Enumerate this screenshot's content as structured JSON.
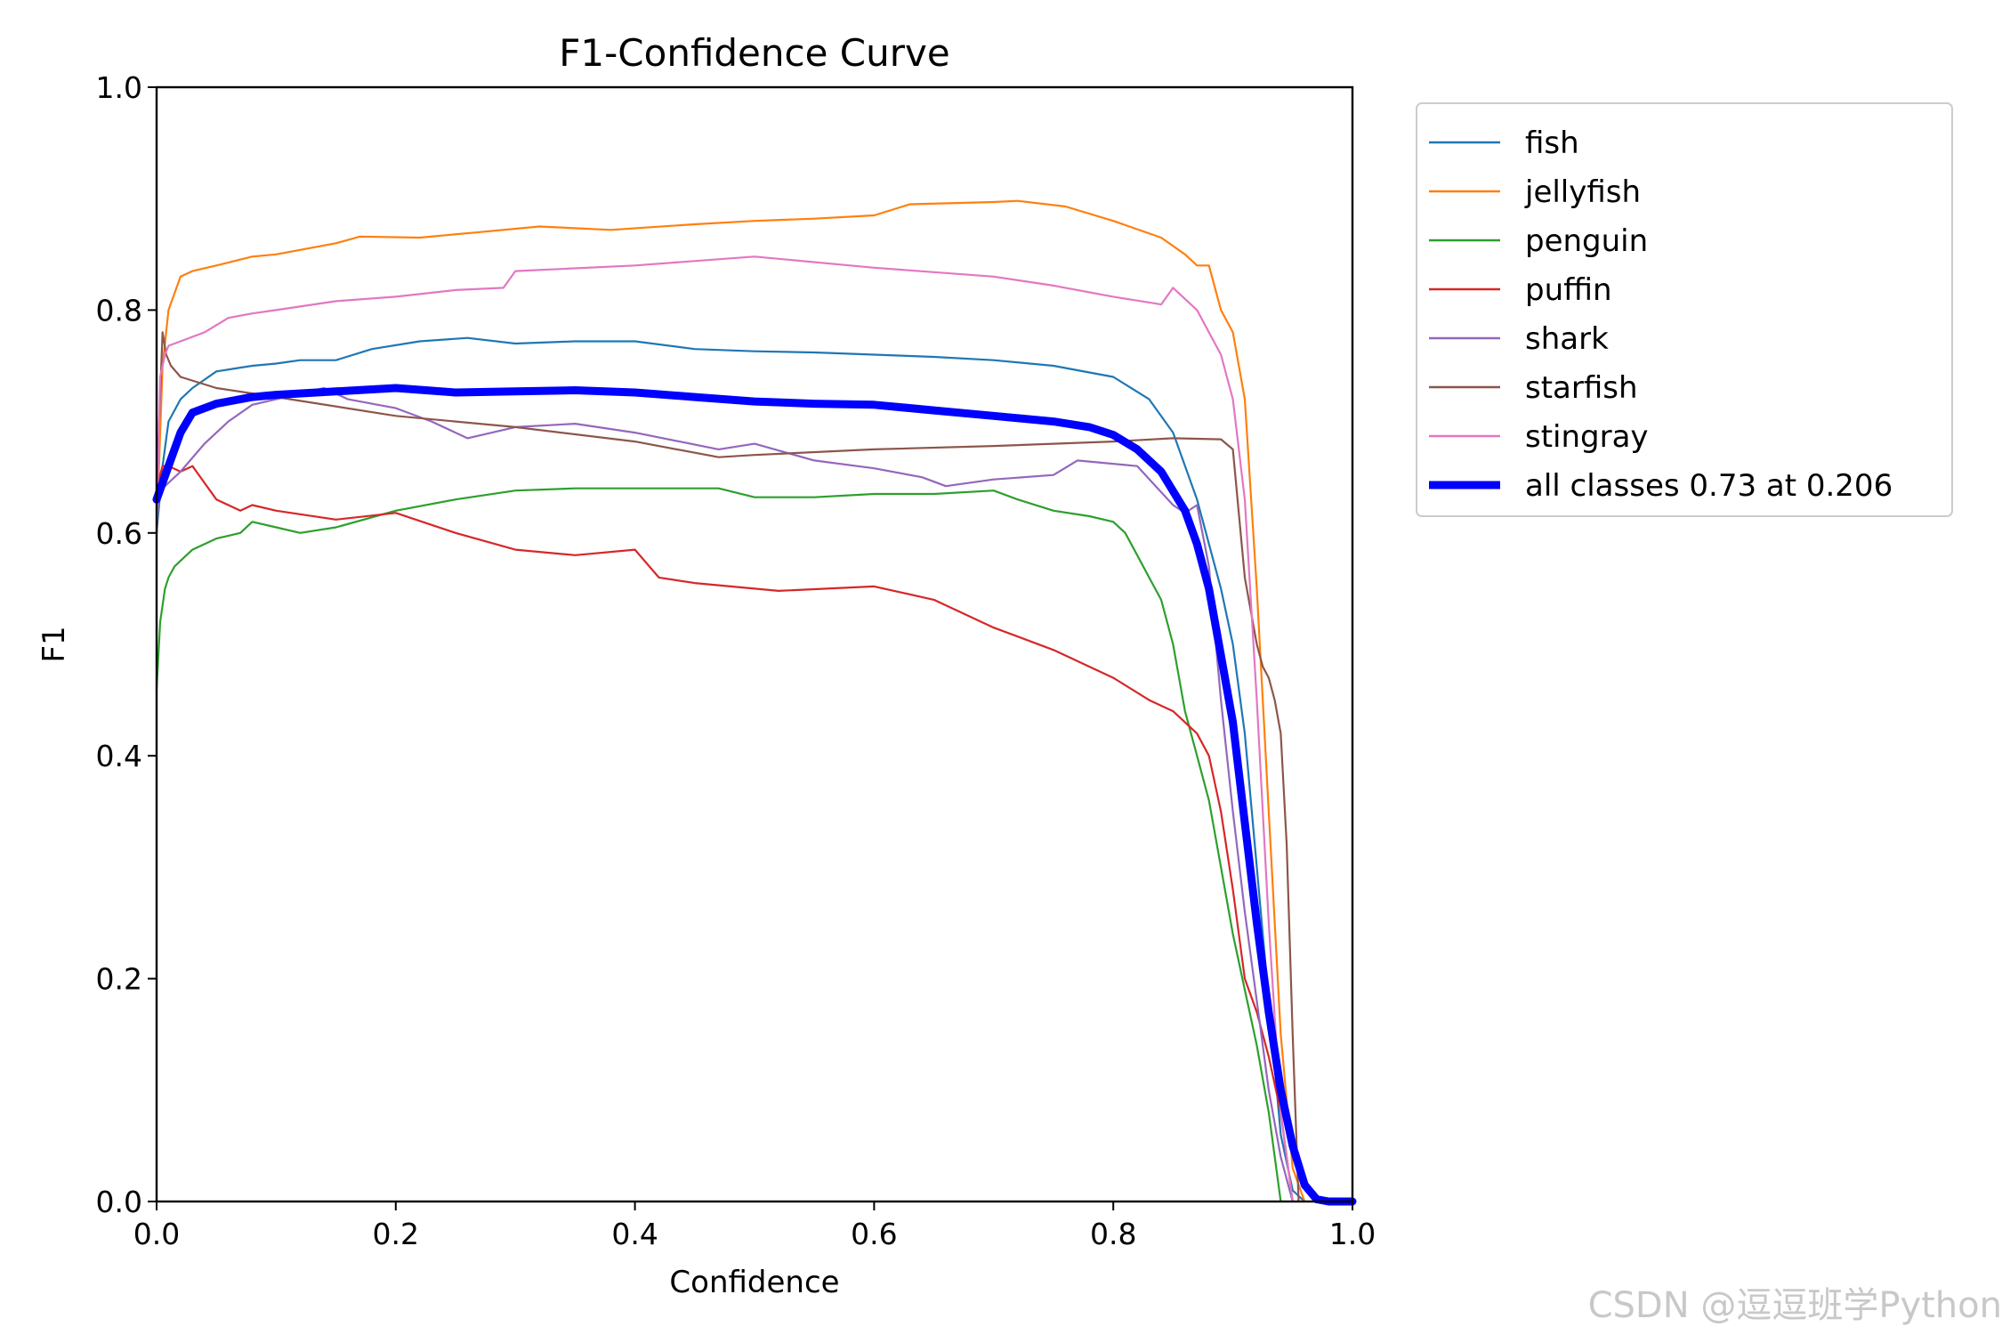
{
  "chart_data": {
    "type": "line",
    "title": "F1-Confidence Curve",
    "xlabel": "Confidence",
    "ylabel": "F1",
    "xlim": [
      0.0,
      1.0
    ],
    "ylim": [
      0.0,
      1.0
    ],
    "xticks": [
      "0.0",
      "0.2",
      "0.4",
      "0.6",
      "0.8",
      "1.0"
    ],
    "yticks": [
      "0.0",
      "0.2",
      "0.4",
      "0.6",
      "0.8",
      "1.0"
    ],
    "grid": false,
    "legend_position": "outside-right-top",
    "series": [
      {
        "name": "fish",
        "color": "#1f77b4",
        "x": [
          0.0,
          0.005,
          0.01,
          0.02,
          0.03,
          0.05,
          0.08,
          0.1,
          0.12,
          0.15,
          0.18,
          0.22,
          0.26,
          0.3,
          0.35,
          0.4,
          0.45,
          0.5,
          0.55,
          0.6,
          0.65,
          0.7,
          0.75,
          0.8,
          0.83,
          0.85,
          0.87,
          0.89,
          0.9,
          0.91,
          0.92,
          0.93,
          0.94,
          0.95,
          0.96
        ],
        "y": [
          0.6,
          0.66,
          0.7,
          0.72,
          0.73,
          0.745,
          0.75,
          0.752,
          0.755,
          0.755,
          0.765,
          0.772,
          0.775,
          0.77,
          0.772,
          0.772,
          0.765,
          0.763,
          0.762,
          0.76,
          0.758,
          0.755,
          0.75,
          0.74,
          0.72,
          0.69,
          0.63,
          0.55,
          0.5,
          0.42,
          0.3,
          0.18,
          0.06,
          0.01,
          0.0
        ]
      },
      {
        "name": "jellyfish",
        "color": "#ff7f0e",
        "x": [
          0.0,
          0.005,
          0.01,
          0.02,
          0.03,
          0.05,
          0.08,
          0.1,
          0.15,
          0.17,
          0.22,
          0.27,
          0.32,
          0.38,
          0.45,
          0.5,
          0.55,
          0.6,
          0.63,
          0.7,
          0.72,
          0.76,
          0.8,
          0.84,
          0.86,
          0.87,
          0.88,
          0.89,
          0.9,
          0.91,
          0.92,
          0.93,
          0.94,
          0.95,
          0.96
        ],
        "y": [
          0.6,
          0.75,
          0.8,
          0.83,
          0.835,
          0.84,
          0.848,
          0.85,
          0.86,
          0.866,
          0.865,
          0.87,
          0.875,
          0.872,
          0.877,
          0.88,
          0.882,
          0.885,
          0.895,
          0.897,
          0.898,
          0.893,
          0.88,
          0.865,
          0.85,
          0.84,
          0.84,
          0.8,
          0.78,
          0.72,
          0.55,
          0.35,
          0.15,
          0.03,
          0.0
        ]
      },
      {
        "name": "penguin",
        "color": "#2ca02c",
        "x": [
          0.0,
          0.003,
          0.007,
          0.01,
          0.015,
          0.02,
          0.03,
          0.05,
          0.07,
          0.08,
          0.1,
          0.12,
          0.15,
          0.2,
          0.25,
          0.3,
          0.35,
          0.4,
          0.45,
          0.47,
          0.5,
          0.55,
          0.6,
          0.65,
          0.7,
          0.72,
          0.75,
          0.78,
          0.8,
          0.81,
          0.82,
          0.83,
          0.84,
          0.85,
          0.86,
          0.87,
          0.88,
          0.89,
          0.9,
          0.91,
          0.92,
          0.93,
          0.94
        ],
        "y": [
          0.46,
          0.52,
          0.55,
          0.56,
          0.57,
          0.575,
          0.585,
          0.595,
          0.6,
          0.61,
          0.605,
          0.6,
          0.605,
          0.62,
          0.63,
          0.638,
          0.64,
          0.64,
          0.64,
          0.64,
          0.632,
          0.632,
          0.635,
          0.635,
          0.638,
          0.63,
          0.62,
          0.615,
          0.61,
          0.6,
          0.58,
          0.56,
          0.54,
          0.5,
          0.44,
          0.4,
          0.36,
          0.3,
          0.24,
          0.19,
          0.14,
          0.08,
          0.0
        ]
      },
      {
        "name": "puffin",
        "color": "#d62728",
        "x": [
          0.0,
          0.005,
          0.01,
          0.02,
          0.03,
          0.04,
          0.05,
          0.07,
          0.08,
          0.1,
          0.15,
          0.2,
          0.25,
          0.3,
          0.35,
          0.4,
          0.42,
          0.45,
          0.52,
          0.6,
          0.65,
          0.7,
          0.75,
          0.8,
          0.83,
          0.85,
          0.86,
          0.87,
          0.88,
          0.89,
          0.9,
          0.91,
          0.92,
          0.93,
          0.94,
          0.95
        ],
        "y": [
          0.64,
          0.66,
          0.66,
          0.655,
          0.66,
          0.645,
          0.63,
          0.62,
          0.625,
          0.62,
          0.612,
          0.618,
          0.6,
          0.585,
          0.58,
          0.585,
          0.56,
          0.555,
          0.548,
          0.552,
          0.54,
          0.515,
          0.495,
          0.47,
          0.45,
          0.44,
          0.43,
          0.42,
          0.4,
          0.35,
          0.28,
          0.2,
          0.17,
          0.13,
          0.08,
          0.0
        ]
      },
      {
        "name": "shark",
        "color": "#9467bd",
        "x": [
          0.0,
          0.005,
          0.01,
          0.02,
          0.04,
          0.06,
          0.08,
          0.1,
          0.14,
          0.16,
          0.2,
          0.23,
          0.26,
          0.3,
          0.35,
          0.4,
          0.47,
          0.5,
          0.55,
          0.6,
          0.64,
          0.66,
          0.7,
          0.75,
          0.77,
          0.82,
          0.85,
          0.86,
          0.87,
          0.88,
          0.89,
          0.9,
          0.91,
          0.92,
          0.93,
          0.94,
          0.95
        ],
        "y": [
          0.62,
          0.64,
          0.645,
          0.655,
          0.68,
          0.7,
          0.715,
          0.72,
          0.73,
          0.72,
          0.712,
          0.7,
          0.685,
          0.695,
          0.698,
          0.69,
          0.675,
          0.68,
          0.665,
          0.658,
          0.65,
          0.642,
          0.648,
          0.652,
          0.665,
          0.66,
          0.625,
          0.618,
          0.625,
          0.57,
          0.45,
          0.35,
          0.26,
          0.18,
          0.1,
          0.04,
          0.0
        ]
      },
      {
        "name": "starfish",
        "color": "#8c564b",
        "x": [
          0.0,
          0.005,
          0.008,
          0.012,
          0.02,
          0.05,
          0.1,
          0.2,
          0.3,
          0.4,
          0.47,
          0.5,
          0.6,
          0.7,
          0.8,
          0.85,
          0.89,
          0.9,
          0.91,
          0.92,
          0.925,
          0.93,
          0.935,
          0.94,
          0.945,
          0.95,
          0.955
        ],
        "y": [
          0.64,
          0.78,
          0.76,
          0.75,
          0.74,
          0.73,
          0.722,
          0.705,
          0.695,
          0.682,
          0.668,
          0.67,
          0.675,
          0.678,
          0.682,
          0.685,
          0.684,
          0.675,
          0.56,
          0.5,
          0.48,
          0.47,
          0.45,
          0.42,
          0.32,
          0.15,
          0.0
        ]
      },
      {
        "name": "stingray",
        "color": "#e377c2",
        "x": [
          0.0,
          0.003,
          0.007,
          0.01,
          0.02,
          0.04,
          0.06,
          0.08,
          0.1,
          0.15,
          0.2,
          0.25,
          0.29,
          0.3,
          0.4,
          0.5,
          0.6,
          0.7,
          0.75,
          0.8,
          0.84,
          0.85,
          0.87,
          0.88,
          0.89,
          0.9,
          0.91,
          0.92,
          0.93,
          0.94,
          0.95
        ],
        "y": [
          0.6,
          0.74,
          0.76,
          0.768,
          0.772,
          0.78,
          0.793,
          0.797,
          0.8,
          0.808,
          0.812,
          0.818,
          0.82,
          0.835,
          0.84,
          0.848,
          0.838,
          0.83,
          0.822,
          0.812,
          0.805,
          0.82,
          0.8,
          0.78,
          0.76,
          0.72,
          0.63,
          0.45,
          0.25,
          0.08,
          0.0
        ]
      },
      {
        "name": "all classes 0.73 at 0.206",
        "color": "#0000ff",
        "width": "bold",
        "x": [
          0.0,
          0.01,
          0.02,
          0.03,
          0.05,
          0.08,
          0.1,
          0.15,
          0.2,
          0.25,
          0.3,
          0.35,
          0.4,
          0.45,
          0.5,
          0.55,
          0.6,
          0.65,
          0.7,
          0.75,
          0.78,
          0.8,
          0.82,
          0.84,
          0.86,
          0.87,
          0.88,
          0.89,
          0.9,
          0.91,
          0.92,
          0.93,
          0.94,
          0.95,
          0.96,
          0.97,
          0.98,
          1.0
        ],
        "y": [
          0.63,
          0.66,
          0.69,
          0.708,
          0.716,
          0.722,
          0.724,
          0.727,
          0.73,
          0.726,
          0.727,
          0.728,
          0.726,
          0.722,
          0.718,
          0.716,
          0.715,
          0.71,
          0.705,
          0.7,
          0.695,
          0.688,
          0.675,
          0.655,
          0.62,
          0.59,
          0.55,
          0.49,
          0.43,
          0.34,
          0.25,
          0.17,
          0.1,
          0.05,
          0.015,
          0.002,
          0.0,
          0.0
        ]
      }
    ]
  },
  "watermark": "CSDN @逗逗班学Python"
}
